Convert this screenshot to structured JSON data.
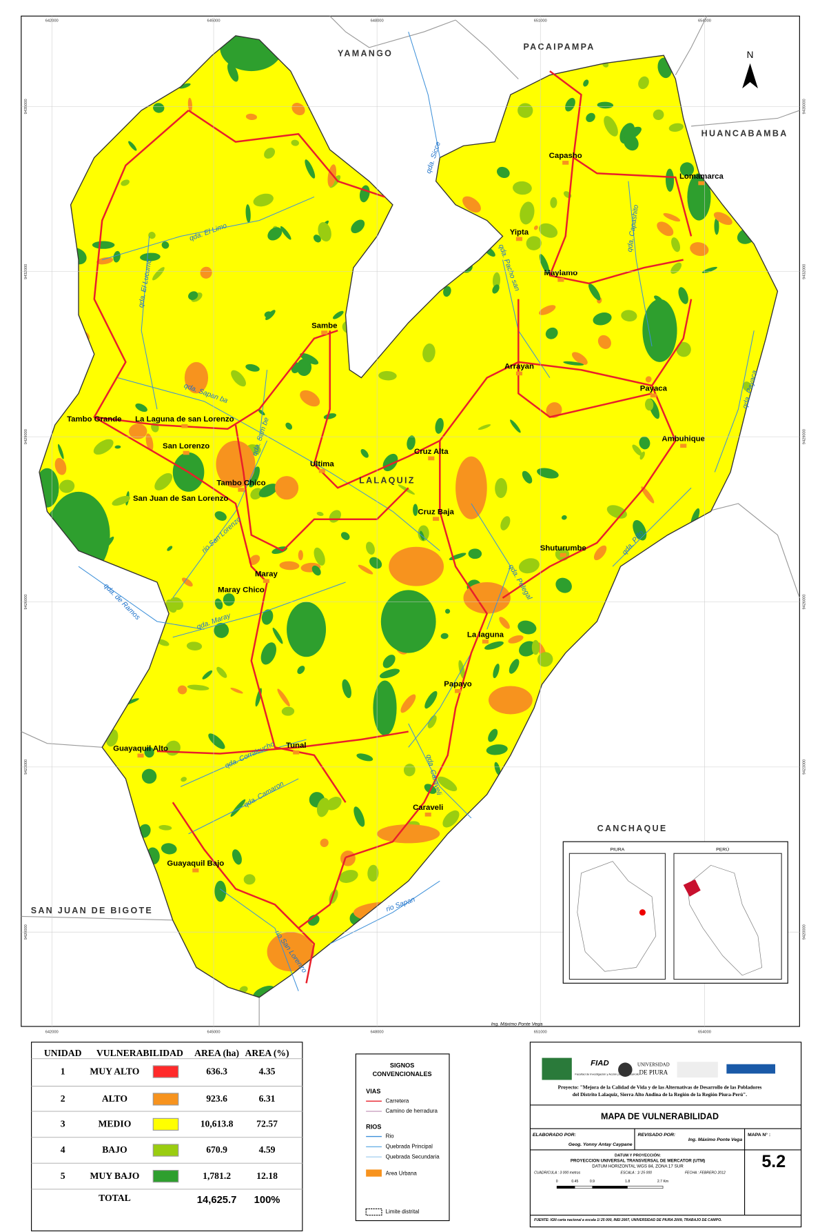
{
  "map": {
    "neighbors": [
      "YAMANGO",
      "PACAIPAMPA",
      "HUANCABAMBA",
      "CANCHAQUE",
      "SAN JUAN DE BIGOTE"
    ],
    "district": "LALAQUIZ",
    "north": "N",
    "towns": [
      "Capasho",
      "Lomamarca",
      "Yipta",
      "Maylamo",
      "Sambe",
      "Arrayan",
      "Payaca",
      "Tambo Grande",
      "La Laguna de san Lorenzo",
      "San Lorenzo",
      "Ambuhique",
      "Cruz Alta",
      "Ultima",
      "Tambo Chico",
      "San Juan de San Lorenzo",
      "Cruz Baja",
      "Shuturumbe",
      "Maray",
      "Maray Chico",
      "La laguna",
      "Papayo",
      "Guayaquil Alto",
      "Tunal",
      "Caraveli",
      "Guayaquil Bajo"
    ],
    "streams": [
      "qda. El Limo",
      "qda. El Lucumo",
      "qda. Sicce",
      "qda. Pacho san",
      "qda. Capashito",
      "qda. Sapan ba",
      "qda. Sam be",
      "rio San Lorenzo",
      "qda. de Ramos",
      "qda. Maray",
      "qda. Payaca",
      "qda. Pillo",
      "qda. Pelegal",
      "qda. Corralcucho",
      "qda. Camaron",
      "qda. Caraveli",
      "rio Sapan",
      "rio San Lorenzo"
    ],
    "x_ticks": [
      "642000",
      "645000",
      "648000",
      "651000",
      "654000"
    ],
    "y_ticks": [
      "9435000",
      "9432000",
      "9429000",
      "9426000",
      "9423000",
      "9420000"
    ],
    "credit": "Ing. Máximo Ponte Vega",
    "insets": [
      "PIURA",
      "PERÚ"
    ]
  },
  "legend_table": {
    "headers": [
      "UNIDAD",
      "VULNERABILIDAD",
      "AREA (ha)",
      "AREA (%)"
    ],
    "rows": [
      {
        "unit": "1",
        "name": "MUY ALTO",
        "color": "#ff2a2a",
        "area": "636.3",
        "pct": "4.35"
      },
      {
        "unit": "2",
        "name": "ALTO",
        "color": "#f7931e",
        "area": "923.6",
        "pct": "6.31"
      },
      {
        "unit": "3",
        "name": "MEDIO",
        "color": "#ffff00",
        "area": "10,613.8",
        "pct": "72.57"
      },
      {
        "unit": "4",
        "name": "BAJO",
        "color": "#9acd10",
        "area": "670.9",
        "pct": "4.59"
      },
      {
        "unit": "5",
        "name": "MUY BAJO",
        "color": "#2e9f2e",
        "area": "1,781.2",
        "pct": "12.18"
      }
    ],
    "total": {
      "label": "TOTAL",
      "area": "14,625.7",
      "pct": "100%"
    }
  },
  "signs": {
    "title": [
      "SIGNOS",
      "CONVENCIONALES"
    ],
    "vias": "VIAS",
    "carretera": "Carretera",
    "camino": "Camino de herradura",
    "rios": "RIOS",
    "rio": "Rio",
    "qp": "Quebrada Principal",
    "qs": "Quebrada Secundaria",
    "urbana": "Area Urbana",
    "limite": "Limite distrital"
  },
  "title_block": {
    "fiad": "FIAD",
    "fiad_sub": "Facultad de Investigación y Acción para el Desarrollo",
    "udep": [
      "UNIVERSIDAD",
      "DE PIURA"
    ],
    "project": [
      "Proyecto: \"Mejora de la Calidad de Vida y de las Alternativas de Desarrollo de las Pobladores",
      "del Distrito Lalaquiz, Sierra Alto Andina de la Región de la Región Piura-Perú\"."
    ],
    "title": "MAPA DE VULNERABILIDAD",
    "elaborado": "ELABORADO POR:",
    "elaborado_name": "Geog. Yonny Antay Caypane",
    "revisado": "REVISADO POR:",
    "revisado_name": "Ing. Máximo Ponte Vega",
    "map_no_label": "MAPA N° :",
    "map_no": "5.2",
    "datum": [
      "DATUM Y PROYECCIÓN:",
      "PROYECCION UNIVERSAL TRANSVERSAL DE MERCATOR (UTM)",
      "DATUM HORIZONTAL WGS 84, ZONA 17 SUR"
    ],
    "grid": "CUADRICULA : 3 000 metros",
    "scale": "ESCALA : 1/ 25 000",
    "date": "FECHA : FEBRERO 2012",
    "scale_bar": [
      "0",
      "0.45",
      "0.9",
      "1.8",
      "2.7 Km"
    ],
    "source": "FUENTE:    IGN carta nacional a escala 1/ 25 000, INEI 2007, UNIVERSIDAD DE PIURA 2009, TRABAJO DE CAMPO."
  }
}
